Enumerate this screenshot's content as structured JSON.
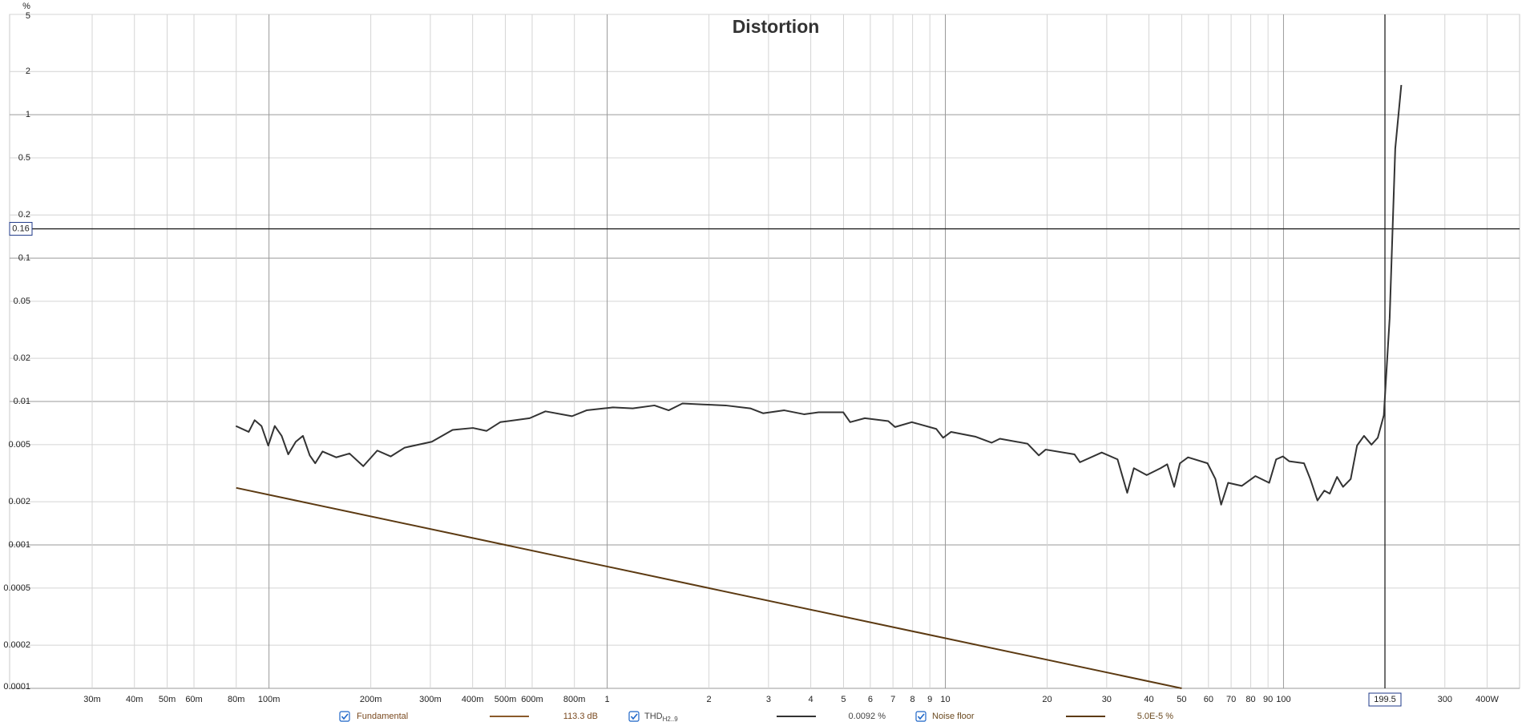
{
  "chart_data": {
    "type": "line",
    "title": "Distortion",
    "y_unit": "%",
    "log_x": true,
    "log_y": true,
    "grid": true,
    "xlim": [
      0.0171,
      499
    ],
    "ylim": [
      0.0001,
      5
    ],
    "xticks": [
      {
        "value": 0.03,
        "label": "30m"
      },
      {
        "value": 0.04,
        "label": "40m"
      },
      {
        "value": 0.05,
        "label": "50m"
      },
      {
        "value": 0.06,
        "label": "60m"
      },
      {
        "value": 0.08,
        "label": "80m"
      },
      {
        "value": 0.1,
        "label": "100m"
      },
      {
        "value": 0.2,
        "label": "200m"
      },
      {
        "value": 0.3,
        "label": "300m"
      },
      {
        "value": 0.4,
        "label": "400m"
      },
      {
        "value": 0.5,
        "label": "500m"
      },
      {
        "value": 0.6,
        "label": "600m"
      },
      {
        "value": 0.8,
        "label": "800m"
      },
      1,
      2,
      3,
      4,
      5,
      6,
      7,
      8,
      9,
      10,
      20,
      30,
      40,
      50,
      60,
      70,
      80,
      90,
      100,
      300,
      {
        "value": 400,
        "label": "400W"
      }
    ],
    "yticks": [
      0.0001,
      0.0002,
      0.0005,
      0.001,
      0.002,
      0.005,
      0.01,
      0.02,
      0.05,
      0.1,
      0.2,
      0.5,
      1,
      2,
      5
    ],
    "cursor": {
      "x": {
        "value": 199.5,
        "label": "199.5"
      },
      "y": {
        "value": 0.16,
        "label": "0.16"
      }
    },
    "series": [
      {
        "name": "Fundamental",
        "color": "#8a5a2b",
        "readout": "113.3 dB"
      },
      {
        "name": "THD",
        "name_sub": "H2..9",
        "color": "#333333",
        "readout": "0.0092 %",
        "x": [
          0.0798,
          0.0871,
          0.0907,
          0.095,
          0.0995,
          0.104,
          0.109,
          0.114,
          0.12,
          0.126,
          0.132,
          0.137,
          0.144,
          0.158,
          0.173,
          0.19,
          0.209,
          0.229,
          0.252,
          0.303,
          0.349,
          0.401,
          0.44,
          0.483,
          0.59,
          0.657,
          0.787,
          0.869,
          1.04,
          1.19,
          1.38,
          1.52,
          1.67,
          1.92,
          2.24,
          2.65,
          2.89,
          3.34,
          3.82,
          4.22,
          4.99,
          5.23,
          5.78,
          6.78,
          7.1,
          7.96,
          9.4,
          9.85,
          10.4,
          12.3,
          13.7,
          14.5,
          17.5,
          18.9,
          19.8,
          24.1,
          25.0,
          29.0,
          32.3,
          34.5,
          36.1,
          39.4,
          43.3,
          45.3,
          47.5,
          49.4,
          52.2,
          59.6,
          62.9,
          65.4,
          68.6,
          75.3,
          82.6,
          90.7,
          95.1,
          99.6,
          104,
          115,
          120,
          126,
          132,
          137,
          144,
          150,
          158,
          165,
          173,
          182,
          190,
          198,
          206,
          214,
          223
        ],
        "values": [
          0.00675,
          0.00614,
          0.00741,
          0.00675,
          0.00493,
          0.00675,
          0.00576,
          0.00428,
          0.00524,
          0.00576,
          0.00421,
          0.00371,
          0.00448,
          0.00408,
          0.00434,
          0.00354,
          0.00455,
          0.00414,
          0.00477,
          0.00524,
          0.00634,
          0.00654,
          0.00624,
          0.00718,
          0.00765,
          0.00854,
          0.0079,
          0.00868,
          0.0091,
          0.00896,
          0.00939,
          0.00868,
          0.00969,
          0.00954,
          0.00939,
          0.00896,
          0.00828,
          0.00868,
          0.00815,
          0.00841,
          0.00841,
          0.00718,
          0.00765,
          0.0073,
          0.00664,
          0.00718,
          0.00644,
          0.00559,
          0.00614,
          0.00568,
          0.00516,
          0.0055,
          0.00508,
          0.00421,
          0.00462,
          0.00428,
          0.00377,
          0.00441,
          0.00395,
          0.00231,
          0.00343,
          0.00307,
          0.00343,
          0.00365,
          0.00254,
          0.00371,
          0.00408,
          0.00371,
          0.00288,
          0.00191,
          0.00271,
          0.00258,
          0.00302,
          0.00271,
          0.00395,
          0.00414,
          0.00383,
          0.00371,
          0.00288,
          0.00204,
          0.00239,
          0.00228,
          0.00298,
          0.00254,
          0.00288,
          0.00493,
          0.00576,
          0.005,
          0.00559,
          0.00802,
          0.0381,
          0.58,
          1.61
        ]
      },
      {
        "name": "Noise floor",
        "color": "#5c3a12",
        "readout": "5.0E-5 %",
        "x": [
          0.08,
          50
        ],
        "values": [
          0.0025,
          0.0001
        ]
      }
    ]
  }
}
